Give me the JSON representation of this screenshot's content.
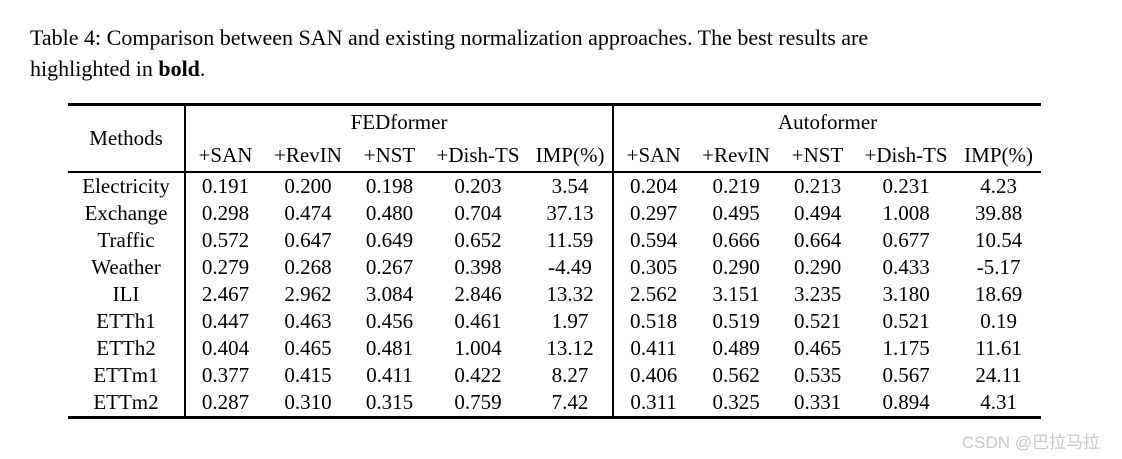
{
  "caption": {
    "line1": "Table 4: Comparison between SAN and existing normalization approaches. The best results are",
    "line2_before_bold": "highlighted in ",
    "bold_text": "bold",
    "line2_after_bold": "."
  },
  "table": {
    "type": "table",
    "methods_header": "Methods",
    "groups": [
      {
        "name": "FEDformer",
        "columns": [
          "+SAN",
          "+RevIN",
          "+NST",
          "+Dish-TS",
          "IMP(%)"
        ]
      },
      {
        "name": "Autoformer",
        "columns": [
          "+SAN",
          "+RevIN",
          "+NST",
          "+Dish-TS",
          "IMP(%)"
        ]
      }
    ],
    "rows": [
      {
        "method": "Electricity",
        "fed": [
          "0.191",
          "0.200",
          "0.198",
          "0.203",
          "3.54"
        ],
        "fed_bold": [
          true,
          false,
          false,
          false,
          false
        ],
        "auto": [
          "0.204",
          "0.219",
          "0.213",
          "0.231",
          "4.23"
        ],
        "auto_bold": [
          true,
          false,
          false,
          false,
          false
        ]
      },
      {
        "method": "Exchange",
        "fed": [
          "0.298",
          "0.474",
          "0.480",
          "0.704",
          "37.13"
        ],
        "fed_bold": [
          true,
          false,
          false,
          false,
          false
        ],
        "auto": [
          "0.297",
          "0.495",
          "0.494",
          "1.008",
          "39.88"
        ],
        "auto_bold": [
          true,
          false,
          false,
          false,
          false
        ]
      },
      {
        "method": "Traffic",
        "fed": [
          "0.572",
          "0.647",
          "0.649",
          "0.652",
          "11.59"
        ],
        "fed_bold": [
          true,
          false,
          false,
          false,
          false
        ],
        "auto": [
          "0.594",
          "0.666",
          "0.664",
          "0.677",
          "10.54"
        ],
        "auto_bold": [
          true,
          false,
          false,
          false,
          false
        ]
      },
      {
        "method": "Weather",
        "fed": [
          "0.279",
          "0.268",
          "0.267",
          "0.398",
          "-4.49"
        ],
        "fed_bold": [
          false,
          false,
          true,
          false,
          false
        ],
        "auto": [
          "0.305",
          "0.290",
          "0.290",
          "0.433",
          "-5.17"
        ],
        "auto_bold": [
          false,
          true,
          true,
          false,
          false
        ]
      },
      {
        "method": "ILI",
        "fed": [
          "2.467",
          "2.962",
          "3.084",
          "2.846",
          "13.32"
        ],
        "fed_bold": [
          true,
          false,
          false,
          false,
          false
        ],
        "auto": [
          "2.562",
          "3.151",
          "3.235",
          "3.180",
          "18.69"
        ],
        "auto_bold": [
          true,
          false,
          false,
          false,
          false
        ]
      },
      {
        "method": "ETTh1",
        "fed": [
          "0.447",
          "0.463",
          "0.456",
          "0.461",
          "1.97"
        ],
        "fed_bold": [
          true,
          false,
          false,
          false,
          false
        ],
        "auto": [
          "0.518",
          "0.519",
          "0.521",
          "0.521",
          "0.19"
        ],
        "auto_bold": [
          true,
          false,
          false,
          false,
          false
        ]
      },
      {
        "method": "ETTh2",
        "fed": [
          "0.404",
          "0.465",
          "0.481",
          "1.004",
          "13.12"
        ],
        "fed_bold": [
          true,
          false,
          false,
          false,
          false
        ],
        "auto": [
          "0.411",
          "0.489",
          "0.465",
          "1.175",
          "11.61"
        ],
        "auto_bold": [
          true,
          false,
          false,
          false,
          false
        ]
      },
      {
        "method": "ETTm1",
        "fed": [
          "0.377",
          "0.415",
          "0.411",
          "0.422",
          "8.27"
        ],
        "fed_bold": [
          true,
          false,
          false,
          false,
          false
        ],
        "auto": [
          "0.406",
          "0.562",
          "0.535",
          "0.567",
          "24.11"
        ],
        "auto_bold": [
          true,
          false,
          false,
          false,
          false
        ]
      },
      {
        "method": "ETTm2",
        "fed": [
          "0.287",
          "0.310",
          "0.315",
          "0.759",
          "7.42"
        ],
        "fed_bold": [
          true,
          false,
          false,
          false,
          false
        ],
        "auto": [
          "0.311",
          "0.325",
          "0.331",
          "0.894",
          "4.31"
        ],
        "auto_bold": [
          true,
          false,
          false,
          false,
          false
        ]
      }
    ]
  },
  "watermark": {
    "text": "CSDN @巴拉马拉",
    "color": "#c9c9c9"
  },
  "colors": {
    "text": "#000000",
    "background": "#ffffff",
    "rule": "#000000"
  }
}
